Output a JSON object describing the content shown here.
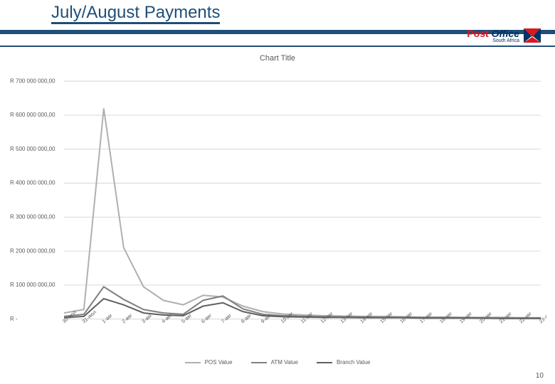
{
  "header": {
    "title": "July/August Payments",
    "logo_text_1": "Post",
    "logo_text_2": "Office",
    "logo_sub": "South Africa"
  },
  "chart": {
    "title": "Chart Title",
    "type": "line",
    "background_color": "#ffffff",
    "grid_color": "#d9d9d9",
    "axis_font_size": 8,
    "title_font_size": 11,
    "title_color": "#595959",
    "y": {
      "min": 0,
      "max": 700000000,
      "step": 100000000,
      "labels": [
        "R -",
        "R 100 000 000,00",
        "R 200 000 000,00",
        "R 300 000 000,00",
        "R 400 000 000,00",
        "R 500 000 000,00",
        "R 600 000 000,00",
        "R 700 000 000,00"
      ]
    },
    "x_labels": [
      "30-июл",
      "31-июл",
      "1-авг",
      "2-авг",
      "3-авг",
      "4-авг",
      "5-авг",
      "6-авг",
      "7-авг",
      "8-авг",
      "9-авг",
      "10-авг",
      "11-авг",
      "12-авг",
      "13-авг",
      "14-авг",
      "15-авг",
      "16-авг",
      "17-авг",
      "18-авг",
      "19-авг",
      "20-авг",
      "21-авг",
      "22-авг",
      "23-авг"
    ],
    "series": [
      {
        "name": "POS Value",
        "color": "#b0b0b0",
        "width": 2,
        "values": [
          18000000,
          28000000,
          620000000,
          210000000,
          95000000,
          55000000,
          42000000,
          70000000,
          65000000,
          38000000,
          22000000,
          15000000,
          12000000,
          10000000,
          9000000,
          8000000,
          8000000,
          7000000,
          6000000,
          6000000,
          5000000,
          5000000,
          5000000,
          4000000,
          4000000
        ]
      },
      {
        "name": "ATM Value",
        "color": "#808080",
        "width": 2,
        "values": [
          8000000,
          14000000,
          95000000,
          58000000,
          28000000,
          18000000,
          14000000,
          55000000,
          68000000,
          30000000,
          14000000,
          10000000,
          8000000,
          7000000,
          6000000,
          6000000,
          5000000,
          5000000,
          4000000,
          4000000,
          4000000,
          3000000,
          3000000,
          3000000,
          3000000
        ]
      },
      {
        "name": "Branch Value",
        "color": "#606060",
        "width": 2,
        "values": [
          4000000,
          8000000,
          60000000,
          42000000,
          18000000,
          12000000,
          10000000,
          38000000,
          48000000,
          22000000,
          10000000,
          7000000,
          6000000,
          5000000,
          5000000,
          4000000,
          4000000,
          4000000,
          3000000,
          3000000,
          3000000,
          3000000,
          2000000,
          2000000,
          2000000
        ]
      }
    ]
  },
  "page_number": "10",
  "colors": {
    "header_rule": "#1f4e79",
    "title_text": "#1f4e79",
    "logo_red": "#d71920",
    "logo_blue": "#003366"
  }
}
